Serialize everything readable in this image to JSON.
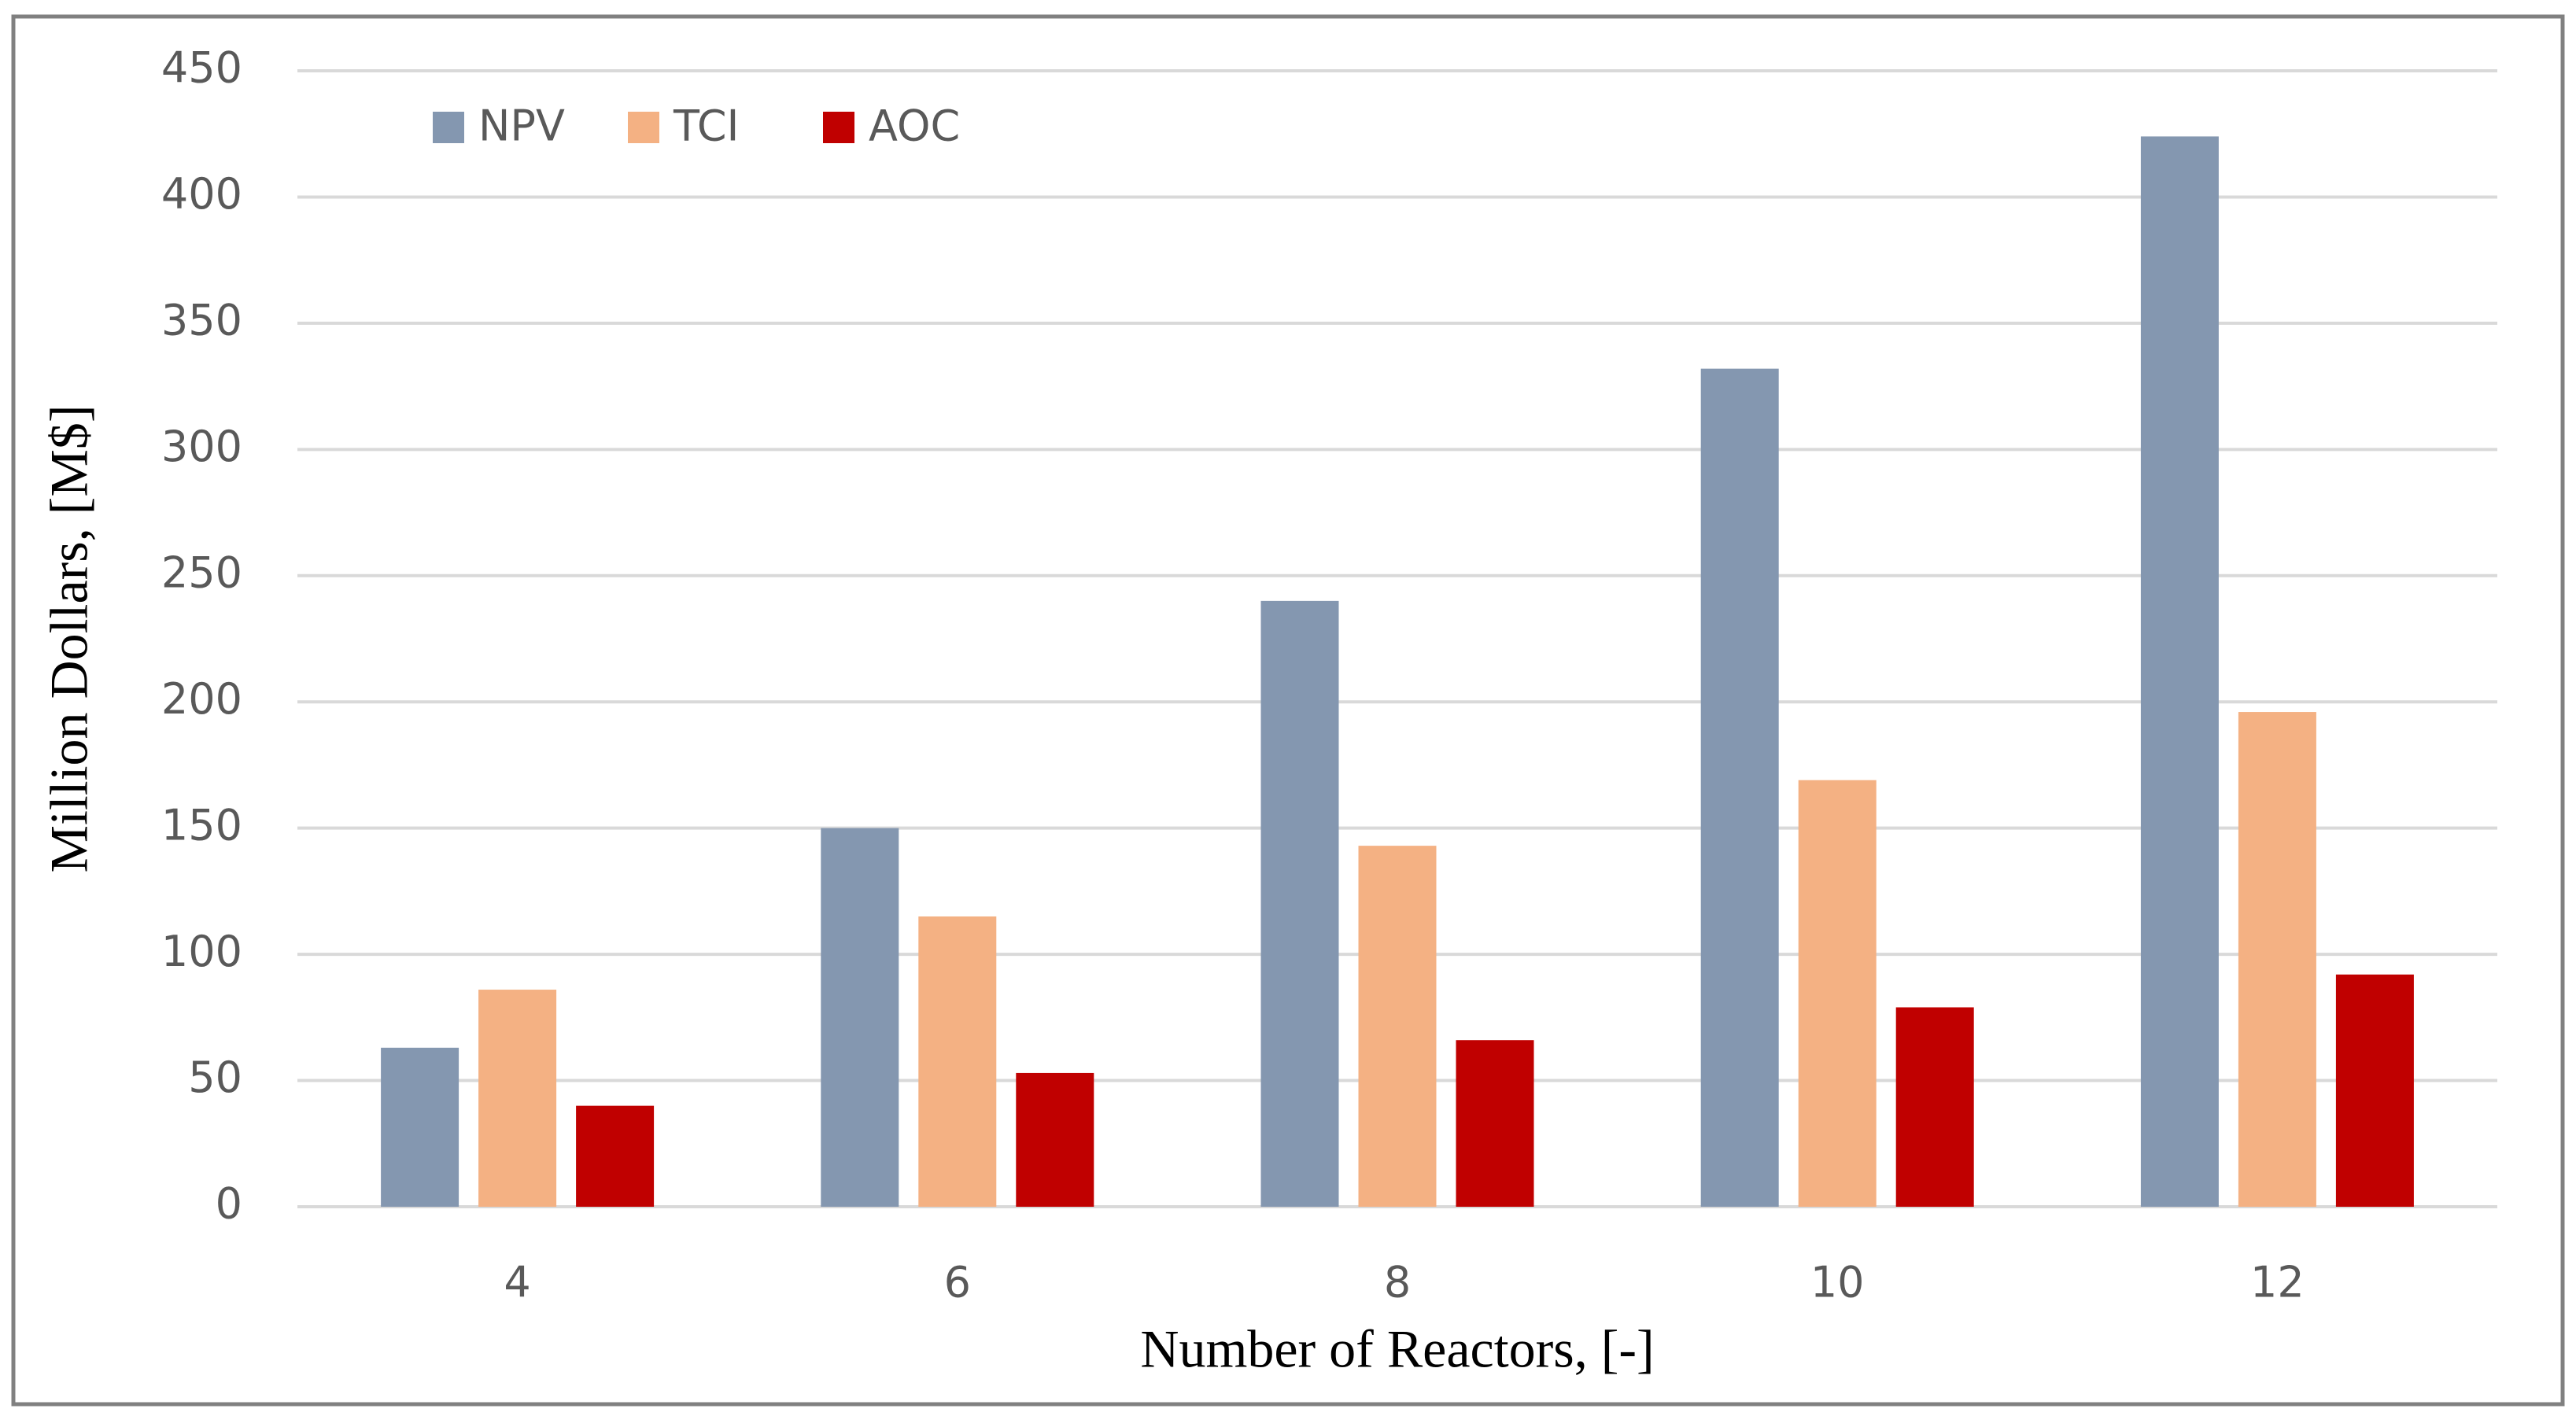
{
  "chart_data": {
    "type": "bar",
    "x_label": "Number of Reactors, [-]",
    "y_label": "Million Dollars, [M$]",
    "categories": [
      "4",
      "6",
      "8",
      "10",
      "12"
    ],
    "series": [
      {
        "name": "NPV",
        "color": "#8497b0",
        "values": [
          63,
          150,
          240,
          332,
          424
        ]
      },
      {
        "name": "TCI",
        "color": "#f4b183",
        "values": [
          86,
          115,
          143,
          169,
          196
        ]
      },
      {
        "name": "AOC",
        "color": "#c00000",
        "values": [
          40,
          53,
          66,
          79,
          92
        ]
      }
    ],
    "ylim": [
      0,
      450
    ],
    "yticks": [
      0,
      50,
      100,
      150,
      200,
      250,
      300,
      350,
      400,
      450
    ],
    "grid": true,
    "legend": "top-left"
  }
}
